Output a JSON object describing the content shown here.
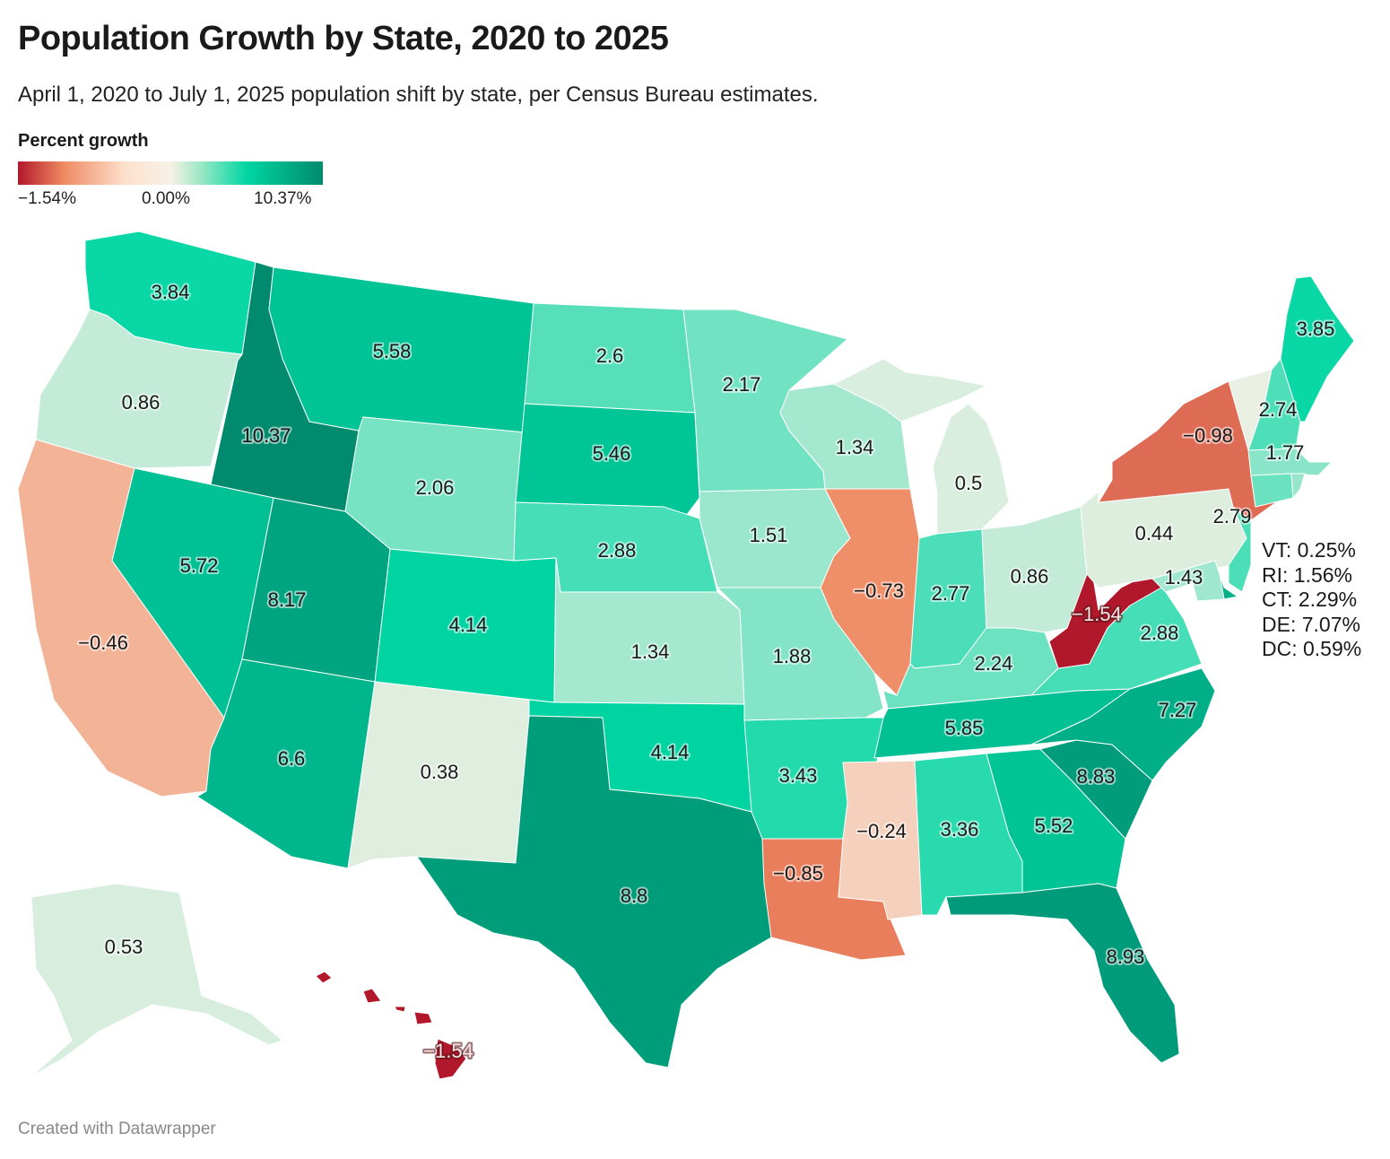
{
  "title": "Population Growth by State, 2020 to 2025",
  "subtitle": "April 1, 2020 to July 1, 2025 population shift by state, per Census Bureau estimates.",
  "legend": {
    "title": "Percent growth",
    "min_label": "−1.54%",
    "mid_label": "0.00%",
    "max_label": "10.37%",
    "min": -1.54,
    "mid": 0,
    "max": 10.37,
    "colors": [
      "#b2182b",
      "#ef8a62",
      "#f8f1e6",
      "#00d6a3",
      "#008a6e"
    ]
  },
  "annotations": [
    "VT: 0.25%",
    "RI: 1.56%",
    "CT: 2.29%",
    "DE: 7.07%",
    "DC: 0.59%"
  ],
  "footer": "Created with Datawrapper",
  "states": [
    {
      "abbr": "WA",
      "value": 3.84,
      "label": "3.84"
    },
    {
      "abbr": "OR",
      "value": 0.86,
      "label": "0.86"
    },
    {
      "abbr": "CA",
      "value": -0.46,
      "label": "−0.46"
    },
    {
      "abbr": "ID",
      "value": 10.37,
      "label": "10.37"
    },
    {
      "abbr": "NV",
      "value": 5.72,
      "label": "5.72"
    },
    {
      "abbr": "MT",
      "value": 5.58,
      "label": "5.58"
    },
    {
      "abbr": "WY",
      "value": 2.06,
      "label": "2.06"
    },
    {
      "abbr": "UT",
      "value": 8.17,
      "label": "8.17"
    },
    {
      "abbr": "AZ",
      "value": 6.6,
      "label": "6.6"
    },
    {
      "abbr": "CO",
      "value": 4.14,
      "label": "4.14"
    },
    {
      "abbr": "NM",
      "value": 0.38,
      "label": "0.38"
    },
    {
      "abbr": "ND",
      "value": 2.6,
      "label": "2.6"
    },
    {
      "abbr": "SD",
      "value": 5.46,
      "label": "5.46"
    },
    {
      "abbr": "NE",
      "value": 2.88,
      "label": "2.88"
    },
    {
      "abbr": "KS",
      "value": 1.34,
      "label": "1.34"
    },
    {
      "abbr": "OK",
      "value": 4.14,
      "label": "4.14"
    },
    {
      "abbr": "TX",
      "value": 8.8,
      "label": "8.8"
    },
    {
      "abbr": "MN",
      "value": 2.17,
      "label": "2.17"
    },
    {
      "abbr": "IA",
      "value": 1.51,
      "label": "1.51"
    },
    {
      "abbr": "MO",
      "value": 1.88,
      "label": "1.88"
    },
    {
      "abbr": "AR",
      "value": 3.43,
      "label": "3.43"
    },
    {
      "abbr": "LA",
      "value": -0.85,
      "label": "−0.85"
    },
    {
      "abbr": "WI",
      "value": 1.34,
      "label": "1.34"
    },
    {
      "abbr": "IL",
      "value": -0.73,
      "label": "−0.73"
    },
    {
      "abbr": "MI",
      "value": 0.5,
      "label": "0.5"
    },
    {
      "abbr": "IN",
      "value": 2.77,
      "label": "2.77"
    },
    {
      "abbr": "OH",
      "value": 0.86,
      "label": "0.86"
    },
    {
      "abbr": "KY",
      "value": 2.24,
      "label": "2.24"
    },
    {
      "abbr": "TN",
      "value": 5.85,
      "label": "5.85"
    },
    {
      "abbr": "MS",
      "value": -0.24,
      "label": "−0.24"
    },
    {
      "abbr": "AL",
      "value": 3.36,
      "label": "3.36"
    },
    {
      "abbr": "GA",
      "value": 5.52,
      "label": "5.52"
    },
    {
      "abbr": "FL",
      "value": 8.93,
      "label": "8.93"
    },
    {
      "abbr": "SC",
      "value": 8.83,
      "label": "8.83"
    },
    {
      "abbr": "NC",
      "value": 7.27,
      "label": "7.27"
    },
    {
      "abbr": "VA",
      "value": 2.88,
      "label": "2.88"
    },
    {
      "abbr": "WV",
      "value": -1.54,
      "label": "−1.54"
    },
    {
      "abbr": "PA",
      "value": 0.44,
      "label": "0.44"
    },
    {
      "abbr": "NY",
      "value": -0.98,
      "label": "−0.98"
    },
    {
      "abbr": "VT",
      "value": 0.25,
      "label": ""
    },
    {
      "abbr": "NH",
      "value": 2.74,
      "label": "2.74"
    },
    {
      "abbr": "ME",
      "value": 3.85,
      "label": "3.85"
    },
    {
      "abbr": "MA",
      "value": 1.77,
      "label": "1.77"
    },
    {
      "abbr": "CT",
      "value": 2.29,
      "label": ""
    },
    {
      "abbr": "RI",
      "value": 1.56,
      "label": ""
    },
    {
      "abbr": "NJ",
      "value": 2.79,
      "label": "2.79"
    },
    {
      "abbr": "DE",
      "value": 7.07,
      "label": ""
    },
    {
      "abbr": "MD",
      "value": 1.43,
      "label": "1.43"
    },
    {
      "abbr": "AK",
      "value": 0.53,
      "label": "0.53"
    },
    {
      "abbr": "HI",
      "value": -1.54,
      "label": "−1.54"
    }
  ]
}
